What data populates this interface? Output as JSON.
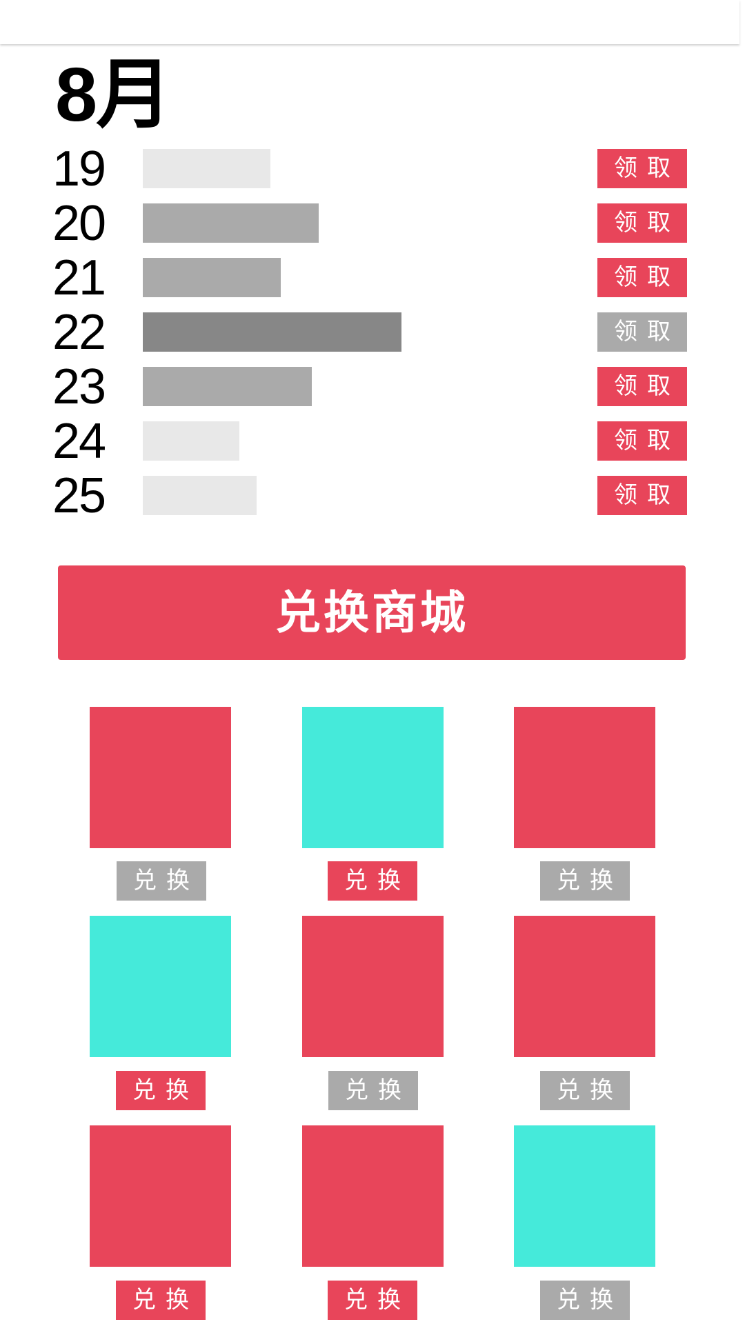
{
  "header": {
    "month": "8月"
  },
  "colors": {
    "brand_red": "#e8455a",
    "teal": "#45eada",
    "disabled_gray": "#aaaaaa",
    "bar_light": "#e8e8e8",
    "bar_medium": "#aaaaaa",
    "bar_dark": "#878787"
  },
  "days": [
    {
      "day": "19",
      "level": 0.37,
      "bar_color": "#e8e8e8",
      "action": "领取",
      "claimable": true
    },
    {
      "day": "20",
      "level": 0.51,
      "bar_color": "#aaaaaa",
      "action": "领取",
      "claimable": true
    },
    {
      "day": "21",
      "level": 0.4,
      "bar_color": "#aaaaaa",
      "action": "领取",
      "claimable": true
    },
    {
      "day": "22",
      "level": 0.75,
      "bar_color": "#878787",
      "action": "领取",
      "claimable": false
    },
    {
      "day": "23",
      "level": 0.49,
      "bar_color": "#aaaaaa",
      "action": "领取",
      "claimable": true
    },
    {
      "day": "24",
      "level": 0.28,
      "bar_color": "#e8e8e8",
      "action": "领取",
      "claimable": true
    },
    {
      "day": "25",
      "level": 0.33,
      "bar_color": "#e8e8e8",
      "action": "领取",
      "claimable": true
    }
  ],
  "mall_button": {
    "label": "兑换商城"
  },
  "prizes": [
    {
      "tile_color": "#e8455a",
      "action": "兑换",
      "enabled": false
    },
    {
      "tile_color": "#45eada",
      "action": "兑换",
      "enabled": true
    },
    {
      "tile_color": "#e8455a",
      "action": "兑换",
      "enabled": false
    },
    {
      "tile_color": "#45eada",
      "action": "兑换",
      "enabled": true
    },
    {
      "tile_color": "#e8455a",
      "action": "兑换",
      "enabled": false
    },
    {
      "tile_color": "#e8455a",
      "action": "兑换",
      "enabled": false
    },
    {
      "tile_color": "#e8455a",
      "action": "兑换",
      "enabled": true
    },
    {
      "tile_color": "#e8455a",
      "action": "兑换",
      "enabled": true
    },
    {
      "tile_color": "#45eada",
      "action": "兑换",
      "enabled": false
    }
  ]
}
